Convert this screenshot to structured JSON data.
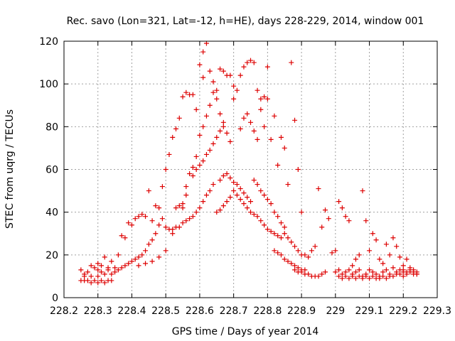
{
  "chart_data": {
    "type": "scatter",
    "title": "Rec. savo (Lon=321, Lat=-12, h=HE), days 228-229, 2014, window 001",
    "xlabel": "GPS time / Days of year 2014",
    "ylabel": "STEC from uqrg / TECUs",
    "xlim": [
      228.2,
      229.3
    ],
    "ylim": [
      0,
      120
    ],
    "xticks": [
      "228.2",
      "228.3",
      "228.4",
      "228.5",
      "228.6",
      "228.7",
      "228.8",
      "228.9",
      "229",
      "229.1",
      "229.2",
      "229.3"
    ],
    "yticks": [
      "0",
      "20",
      "40",
      "60",
      "80",
      "100",
      "120"
    ],
    "grid": true,
    "marker": "+",
    "color": "#dd0000",
    "series": [
      {
        "points": [
          [
            228.25,
            13
          ],
          [
            228.26,
            11
          ],
          [
            228.27,
            12
          ],
          [
            228.28,
            15
          ],
          [
            228.29,
            14
          ],
          [
            228.3,
            16
          ],
          [
            228.31,
            15
          ],
          [
            228.32,
            19
          ],
          [
            228.33,
            14
          ],
          [
            228.34,
            17
          ],
          [
            228.25,
            8
          ],
          [
            228.26,
            8
          ],
          [
            228.27,
            8
          ],
          [
            228.28,
            7
          ],
          [
            228.29,
            8
          ],
          [
            228.3,
            7
          ],
          [
            228.31,
            8
          ],
          [
            228.32,
            7
          ],
          [
            228.33,
            8
          ],
          [
            228.34,
            8
          ],
          [
            228.26,
            10
          ],
          [
            228.28,
            10
          ],
          [
            228.3,
            10
          ],
          [
            228.32,
            11
          ],
          [
            228.34,
            11
          ],
          [
            228.35,
            12
          ],
          [
            228.36,
            13
          ],
          [
            228.37,
            14
          ],
          [
            228.38,
            15
          ],
          [
            228.39,
            16
          ],
          [
            228.3,
            13
          ],
          [
            228.31,
            12
          ],
          [
            228.33,
            13
          ],
          [
            228.35,
            14
          ],
          [
            228.36,
            20
          ],
          [
            228.37,
            29
          ],
          [
            228.38,
            28
          ],
          [
            228.39,
            35
          ],
          [
            228.4,
            34
          ],
          [
            228.41,
            37
          ],
          [
            228.4,
            17
          ],
          [
            228.41,
            18
          ],
          [
            228.42,
            19
          ],
          [
            228.43,
            20
          ],
          [
            228.44,
            22
          ],
          [
            228.45,
            25
          ],
          [
            228.46,
            27
          ],
          [
            228.47,
            30
          ],
          [
            228.48,
            34
          ],
          [
            228.49,
            37
          ],
          [
            228.42,
            38
          ],
          [
            228.43,
            39
          ],
          [
            228.44,
            38
          ],
          [
            228.45,
            50
          ],
          [
            228.46,
            36
          ],
          [
            228.47,
            43
          ],
          [
            228.48,
            42
          ],
          [
            228.49,
            52
          ],
          [
            228.5,
            60
          ],
          [
            228.51,
            67
          ],
          [
            228.42,
            15
          ],
          [
            228.44,
            16
          ],
          [
            228.46,
            17
          ],
          [
            228.48,
            19
          ],
          [
            228.5,
            22
          ],
          [
            228.52,
            30
          ],
          [
            228.53,
            33
          ],
          [
            228.54,
            33
          ],
          [
            228.55,
            42
          ],
          [
            228.56,
            48
          ],
          [
            228.5,
            33
          ],
          [
            228.51,
            32
          ],
          [
            228.52,
            32
          ],
          [
            228.53,
            42
          ],
          [
            228.54,
            43
          ],
          [
            228.55,
            44
          ],
          [
            228.56,
            52
          ],
          [
            228.57,
            58
          ],
          [
            228.58,
            61
          ],
          [
            228.59,
            66
          ],
          [
            228.52,
            75
          ],
          [
            228.53,
            79
          ],
          [
            228.54,
            84
          ],
          [
            228.55,
            94
          ],
          [
            228.56,
            96
          ],
          [
            228.57,
            95
          ],
          [
            228.58,
            95
          ],
          [
            228.59,
            88
          ],
          [
            228.6,
            109
          ],
          [
            228.61,
            103
          ],
          [
            228.55,
            35
          ],
          [
            228.56,
            36
          ],
          [
            228.57,
            37
          ],
          [
            228.58,
            38
          ],
          [
            228.59,
            40
          ],
          [
            228.6,
            42
          ],
          [
            228.61,
            45
          ],
          [
            228.62,
            48
          ],
          [
            228.63,
            50
          ],
          [
            228.64,
            53
          ],
          [
            228.58,
            57
          ],
          [
            228.59,
            60
          ],
          [
            228.6,
            62
          ],
          [
            228.61,
            64
          ],
          [
            228.62,
            67
          ],
          [
            228.63,
            69
          ],
          [
            228.64,
            72
          ],
          [
            228.65,
            75
          ],
          [
            228.66,
            78
          ],
          [
            228.67,
            80
          ],
          [
            228.61,
            115
          ],
          [
            228.62,
            119
          ],
          [
            228.63,
            106
          ],
          [
            228.64,
            101
          ],
          [
            228.65,
            97
          ],
          [
            228.66,
            107
          ],
          [
            228.67,
            106
          ],
          [
            228.68,
            104
          ],
          [
            228.69,
            104
          ],
          [
            228.7,
            99
          ],
          [
            228.6,
            76
          ],
          [
            228.61,
            80
          ],
          [
            228.62,
            85
          ],
          [
            228.63,
            90
          ],
          [
            228.64,
            96
          ],
          [
            228.65,
            93
          ],
          [
            228.66,
            86
          ],
          [
            228.67,
            82
          ],
          [
            228.68,
            77
          ],
          [
            228.69,
            73
          ],
          [
            228.65,
            40
          ],
          [
            228.66,
            41
          ],
          [
            228.67,
            43
          ],
          [
            228.68,
            45
          ],
          [
            228.69,
            47
          ],
          [
            228.7,
            50
          ],
          [
            228.71,
            48
          ],
          [
            228.72,
            46
          ],
          [
            228.73,
            44
          ],
          [
            228.74,
            42
          ],
          [
            228.66,
            55
          ],
          [
            228.67,
            57
          ],
          [
            228.68,
            58
          ],
          [
            228.69,
            56
          ],
          [
            228.7,
            54
          ],
          [
            228.71,
            53
          ],
          [
            228.72,
            51
          ],
          [
            228.73,
            49
          ],
          [
            228.74,
            47
          ],
          [
            228.75,
            45
          ],
          [
            228.7,
            93
          ],
          [
            228.71,
            97
          ],
          [
            228.72,
            104
          ],
          [
            228.73,
            108
          ],
          [
            228.74,
            110
          ],
          [
            228.75,
            111
          ],
          [
            228.76,
            110
          ],
          [
            228.77,
            97
          ],
          [
            228.78,
            93
          ],
          [
            228.79,
            94
          ],
          [
            228.72,
            79
          ],
          [
            228.73,
            84
          ],
          [
            228.74,
            86
          ],
          [
            228.75,
            82
          ],
          [
            228.76,
            78
          ],
          [
            228.77,
            74
          ],
          [
            228.78,
            88
          ],
          [
            228.79,
            80
          ],
          [
            228.8,
            93
          ],
          [
            228.81,
            74
          ],
          [
            228.75,
            40
          ],
          [
            228.76,
            39
          ],
          [
            228.77,
            38
          ],
          [
            228.78,
            36
          ],
          [
            228.79,
            34
          ],
          [
            228.8,
            32
          ],
          [
            228.81,
            31
          ],
          [
            228.82,
            30
          ],
          [
            228.83,
            29
          ],
          [
            228.84,
            28
          ],
          [
            228.76,
            55
          ],
          [
            228.77,
            53
          ],
          [
            228.78,
            50
          ],
          [
            228.79,
            48
          ],
          [
            228.8,
            46
          ],
          [
            228.81,
            44
          ],
          [
            228.82,
            40
          ],
          [
            228.83,
            38
          ],
          [
            228.84,
            35
          ],
          [
            228.85,
            33
          ],
          [
            228.8,
            108
          ],
          [
            228.82,
            85
          ],
          [
            228.83,
            62
          ],
          [
            228.84,
            75
          ],
          [
            228.85,
            70
          ],
          [
            228.86,
            53
          ],
          [
            228.87,
            110
          ],
          [
            228.88,
            83
          ],
          [
            228.89,
            60
          ],
          [
            228.9,
            40
          ],
          [
            228.82,
            22
          ],
          [
            228.83,
            21
          ],
          [
            228.84,
            20
          ],
          [
            228.85,
            18
          ],
          [
            228.86,
            17
          ],
          [
            228.87,
            16
          ],
          [
            228.88,
            15
          ],
          [
            228.89,
            14
          ],
          [
            228.9,
            13
          ],
          [
            228.91,
            13
          ],
          [
            228.85,
            30
          ],
          [
            228.86,
            28
          ],
          [
            228.87,
            26
          ],
          [
            228.88,
            24
          ],
          [
            228.89,
            22
          ],
          [
            228.9,
            20
          ],
          [
            228.91,
            20
          ],
          [
            228.92,
            19
          ],
          [
            228.93,
            22
          ],
          [
            228.94,
            24
          ],
          [
            228.88,
            13
          ],
          [
            228.89,
            12
          ],
          [
            228.9,
            12
          ],
          [
            228.91,
            11
          ],
          [
            228.92,
            11
          ],
          [
            228.93,
            10
          ],
          [
            228.94,
            10
          ],
          [
            228.95,
            10
          ],
          [
            228.96,
            11
          ],
          [
            228.97,
            12
          ],
          [
            228.95,
            51
          ],
          [
            228.96,
            33
          ],
          [
            228.97,
            41
          ],
          [
            228.98,
            37
          ],
          [
            228.99,
            21
          ],
          [
            229.0,
            22
          ],
          [
            229.01,
            45
          ],
          [
            229.02,
            42
          ],
          [
            229.03,
            38
          ],
          [
            229.04,
            36
          ],
          [
            229.0,
            12
          ],
          [
            229.01,
            13
          ],
          [
            229.02,
            11
          ],
          [
            229.03,
            12
          ],
          [
            229.04,
            13
          ],
          [
            229.05,
            11
          ],
          [
            229.06,
            12
          ],
          [
            229.07,
            13
          ],
          [
            229.08,
            10
          ],
          [
            229.09,
            11
          ],
          [
            229.01,
            10
          ],
          [
            229.02,
            9
          ],
          [
            229.03,
            10
          ],
          [
            229.04,
            9
          ],
          [
            229.05,
            10
          ],
          [
            229.06,
            9
          ],
          [
            229.07,
            10
          ],
          [
            229.08,
            9
          ],
          [
            229.09,
            10
          ],
          [
            229.1,
            9
          ],
          [
            229.05,
            15
          ],
          [
            229.06,
            18
          ],
          [
            229.07,
            20
          ],
          [
            229.08,
            50
          ],
          [
            229.09,
            36
          ],
          [
            229.1,
            22
          ],
          [
            229.11,
            30
          ],
          [
            229.12,
            27
          ],
          [
            229.13,
            18
          ],
          [
            229.14,
            16
          ],
          [
            229.1,
            13
          ],
          [
            229.11,
            12
          ],
          [
            229.12,
            11
          ],
          [
            229.13,
            10
          ],
          [
            229.14,
            12
          ],
          [
            229.15,
            13
          ],
          [
            229.16,
            11
          ],
          [
            229.17,
            14
          ],
          [
            229.18,
            12
          ],
          [
            229.19,
            13
          ],
          [
            229.11,
            10
          ],
          [
            229.12,
            9
          ],
          [
            229.13,
            9
          ],
          [
            229.14,
            10
          ],
          [
            229.15,
            9
          ],
          [
            229.16,
            10
          ],
          [
            229.17,
            10
          ],
          [
            229.18,
            11
          ],
          [
            229.19,
            11
          ],
          [
            229.2,
            12
          ],
          [
            229.15,
            25
          ],
          [
            229.16,
            20
          ],
          [
            229.17,
            28
          ],
          [
            229.18,
            24
          ],
          [
            229.19,
            19
          ],
          [
            229.2,
            15
          ],
          [
            229.21,
            18
          ],
          [
            229.22,
            13
          ],
          [
            229.23,
            12
          ],
          [
            229.24,
            11
          ],
          [
            229.2,
            13
          ],
          [
            229.21,
            12
          ],
          [
            229.22,
            12
          ],
          [
            229.23,
            11
          ],
          [
            229.24,
            11
          ],
          [
            229.22,
            14
          ],
          [
            229.23,
            13
          ],
          [
            229.24,
            12
          ],
          [
            229.21,
            11
          ],
          [
            229.2,
            10
          ]
        ]
      }
    ]
  }
}
